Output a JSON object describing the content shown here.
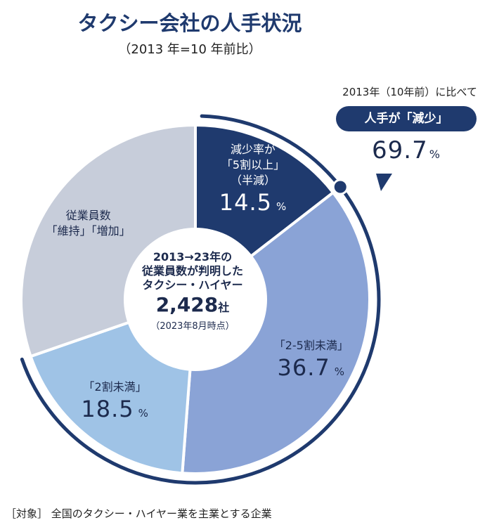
{
  "header": {
    "title": "タクシー会社の人手状況",
    "subtitle": "（2013 年=10 年前比）"
  },
  "center": {
    "line1": "2013→23年の",
    "line2": "従業員数が判明した",
    "line3": "タクシー・ハイヤー",
    "count": "2,428",
    "count_unit": "社",
    "date": "（2023年8月時点）"
  },
  "callout": {
    "note": "2013年（10年前）に比べて",
    "pill": "人手が「減少」",
    "value": "69.7",
    "unit": "%"
  },
  "footer": {
    "text": "［対象］ 全国のタクシー・ハイヤー業を主業とする企業"
  },
  "colors": {
    "dark_navy": "#1f3a6e",
    "mid_blue": "#8aa3d6",
    "light_blue": "#9fc3e6",
    "gray": "#c7cdda",
    "arc": "#1f3a6e"
  },
  "chart_data": {
    "type": "pie",
    "title": "タクシー会社の人手状況",
    "slices": [
      {
        "label_lines": [
          "減少率が",
          "「5割以上」",
          "（半減）"
        ],
        "value": 14.5,
        "unit": "%",
        "color": "#1f3a6e",
        "dark": true
      },
      {
        "label_lines": [
          "「2-5割未満」"
        ],
        "value": 36.7,
        "unit": "%",
        "color": "#8aa3d6",
        "dark": false
      },
      {
        "label_lines": [
          "「2割未満」"
        ],
        "value": 18.5,
        "unit": "%",
        "color": "#9fc3e6",
        "dark": false
      },
      {
        "label_lines": [
          "従業員数",
          "「維持」「増加」"
        ],
        "value": 30.3,
        "unit": "",
        "color": "#c7cdda",
        "dark": false
      }
    ]
  }
}
